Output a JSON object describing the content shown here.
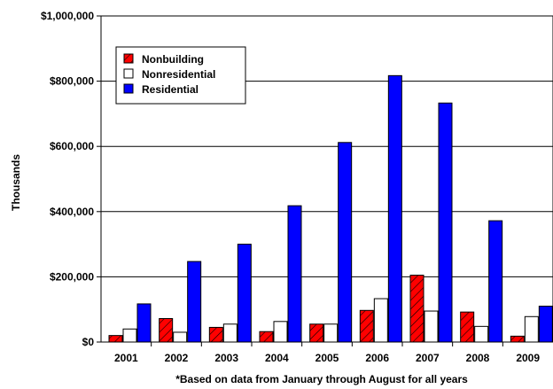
{
  "chart_data": {
    "type": "bar",
    "title": "",
    "xlabel": "*Based on data from January through August for all years",
    "ylabel": "Thousands",
    "categories": [
      "2001",
      "2002",
      "2003",
      "2004",
      "2005",
      "2006",
      "2007",
      "2008",
      "2009"
    ],
    "series": [
      {
        "name": "Nonbuilding",
        "color": "#ff0000",
        "pattern": "diagonal-hatch",
        "values": [
          20000,
          72000,
          45000,
          32000,
          55000,
          97000,
          205000,
          92000,
          18000
        ]
      },
      {
        "name": "Nonresidential",
        "color": "#ffffff",
        "values": [
          40000,
          30000,
          55000,
          63000,
          55000,
          133000,
          95000,
          48000,
          78000
        ]
      },
      {
        "name": "Residential",
        "color": "#0000ff",
        "values": [
          117000,
          247000,
          300000,
          418000,
          612000,
          817000,
          733000,
          372000,
          110000
        ]
      }
    ],
    "ylim": [
      0,
      1000000
    ],
    "yticks": [
      0,
      200000,
      400000,
      600000,
      800000,
      1000000
    ],
    "ytick_labels": [
      "$0",
      "$200,000",
      "$400,000",
      "$600,000",
      "$800,000",
      "$1,000,000"
    ],
    "grid": true,
    "legend_position": "top-left"
  }
}
